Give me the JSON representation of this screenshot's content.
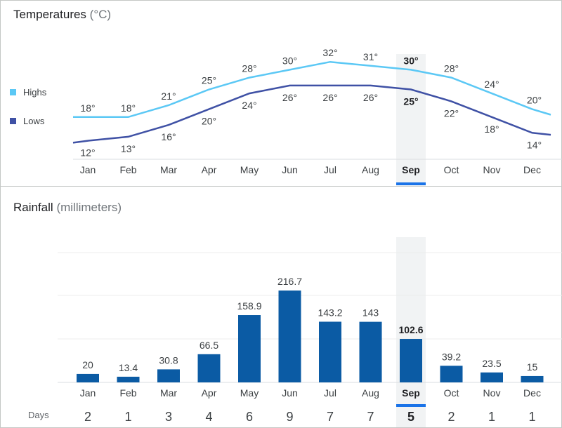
{
  "temperatures": {
    "title": "Temperatures",
    "unit": "(°C)"
  },
  "rainfall": {
    "title": "Rainfall",
    "unit": "(millimeters)"
  },
  "legend": {
    "highs": "Highs",
    "lows": "Lows",
    "highs_color": "#5bc8f5",
    "lows_color": "#3f51a5"
  },
  "days_label": "Days",
  "selected_month": "Sep",
  "colors": {
    "bar": "#0b5ba4",
    "highlight_band": "#f1f3f4",
    "selected_underline": "#1a73e8"
  },
  "chart_data": [
    {
      "type": "line",
      "title": "Temperatures",
      "ylabel": "°C",
      "categories": [
        "Jan",
        "Feb",
        "Mar",
        "Apr",
        "May",
        "Jun",
        "Jul",
        "Aug",
        "Sep",
        "Oct",
        "Nov",
        "Dec"
      ],
      "value_labels": {
        "highs": [
          "18°",
          "18°",
          "21°",
          "25°",
          "28°",
          "30°",
          "32°",
          "31°",
          "30°",
          "28°",
          "24°",
          "20°"
        ],
        "lows": [
          "12°",
          "13°",
          "16°",
          "20°",
          "24°",
          "26°",
          "26°",
          "26°",
          "25°",
          "22°",
          "18°",
          "14°"
        ]
      },
      "series": [
        {
          "name": "Highs",
          "values": [
            18,
            18,
            21,
            25,
            28,
            30,
            32,
            31,
            30,
            28,
            24,
            20
          ]
        },
        {
          "name": "Lows",
          "values": [
            12,
            13,
            16,
            20,
            24,
            26,
            26,
            26,
            25,
            22,
            18,
            14
          ]
        }
      ]
    },
    {
      "type": "bar",
      "title": "Rainfall",
      "ylabel": "millimeters",
      "categories": [
        "Jan",
        "Feb",
        "Mar",
        "Apr",
        "May",
        "Jun",
        "Jul",
        "Aug",
        "Sep",
        "Oct",
        "Nov",
        "Dec"
      ],
      "values": [
        20,
        13.4,
        30.8,
        66.5,
        158.9,
        216.7,
        143.2,
        143,
        102.6,
        39.2,
        23.5,
        15
      ],
      "days": [
        2,
        1,
        3,
        4,
        6,
        9,
        7,
        7,
        5,
        2,
        1,
        1
      ],
      "grid": true
    }
  ]
}
